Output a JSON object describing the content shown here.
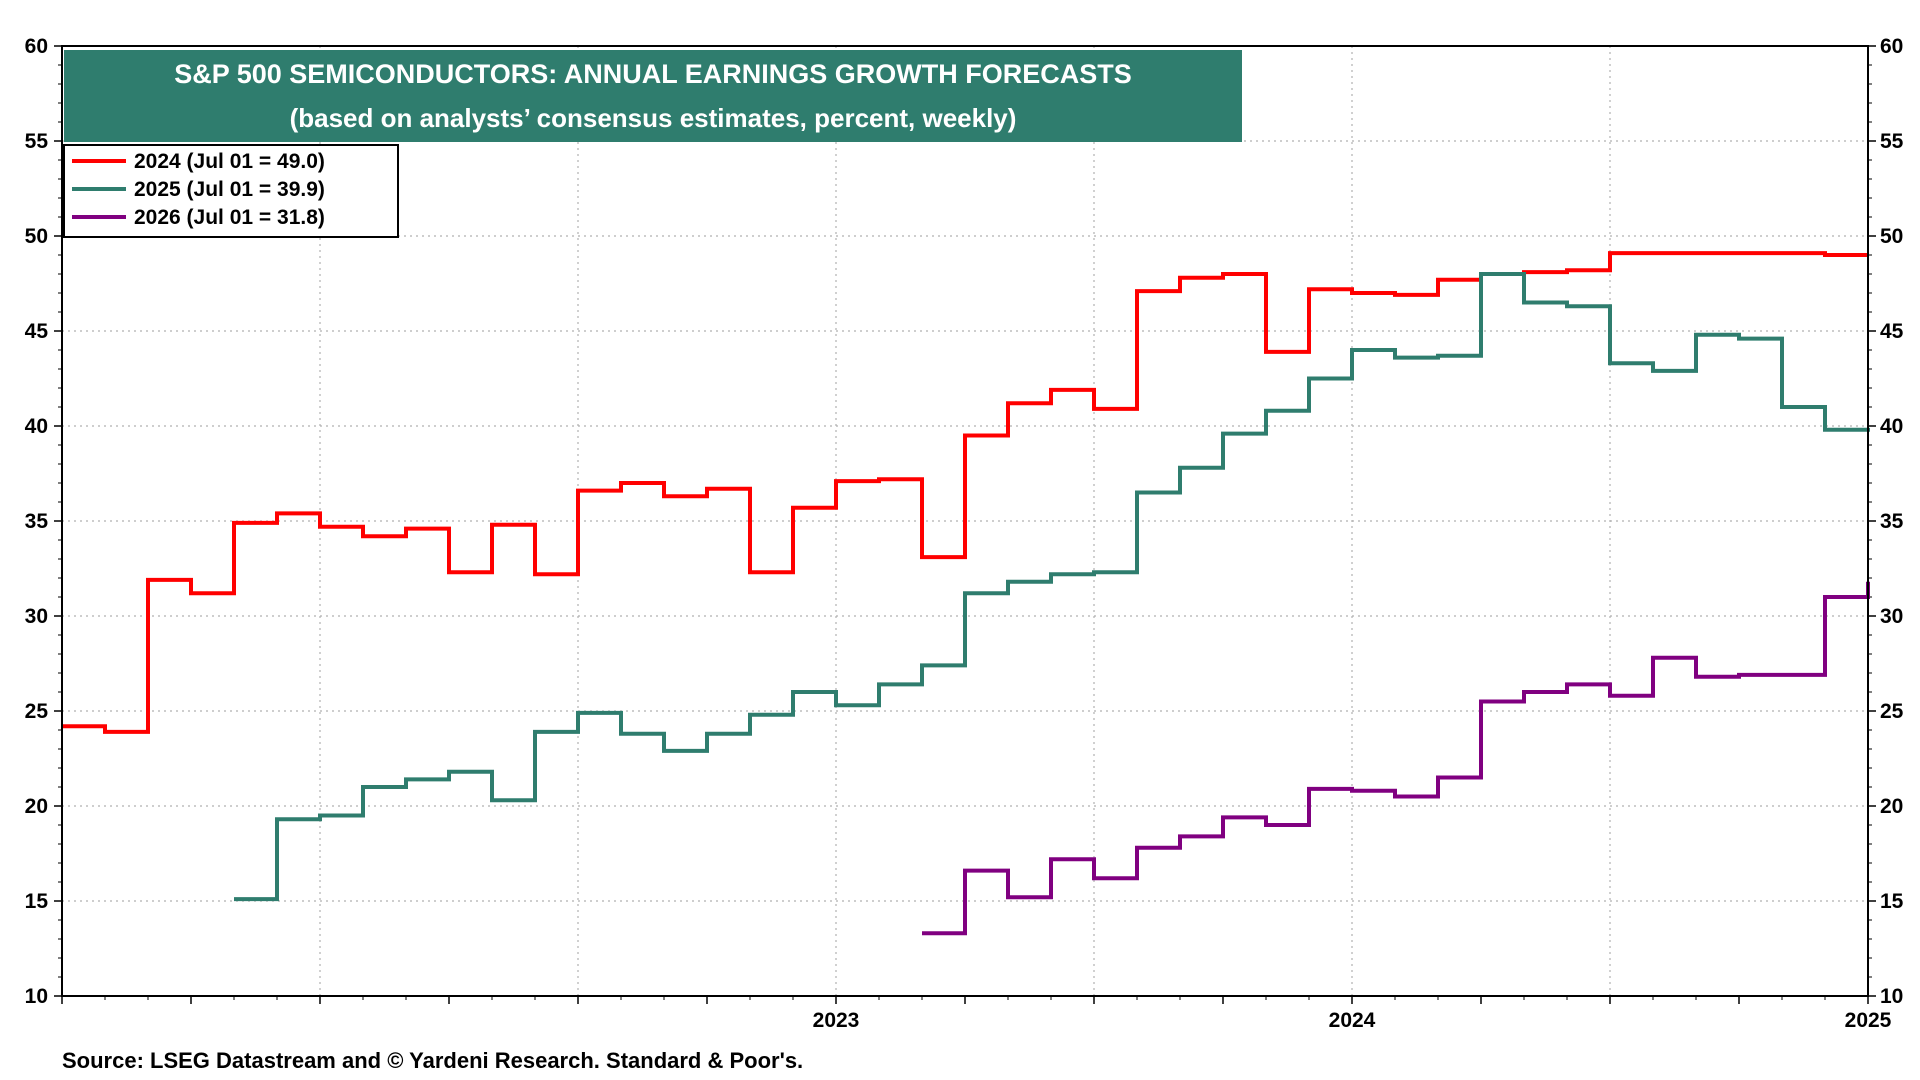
{
  "chart_data": {
    "type": "line",
    "title": "S&P 500 SEMICONDUCTORS: ANNUAL EARNINGS GROWTH FORECASTS",
    "subtitle": "(based on analysts’ consensus estimates, percent, weekly)",
    "source": "Source: LSEG Datastream and © Yardeni Research. Standard & Poor's.",
    "xlabel": "",
    "ylabel": "",
    "x_range": [
      "2022-01",
      "2025-07"
    ],
    "x_tick_labels": [
      "2023",
      "2024",
      "2025"
    ],
    "ylim": [
      10,
      60
    ],
    "y_ticks": [
      10,
      15,
      20,
      25,
      30,
      35,
      40,
      45,
      50,
      55,
      60
    ],
    "y_tick_labels": [
      "10",
      "15",
      "20",
      "25",
      "30",
      "35",
      "40",
      "45",
      "50",
      "55",
      "60"
    ],
    "grid": true,
    "legend_position": "top-left",
    "colors": {
      "title_bg": "#2f7d6e",
      "s2024": "#ff0000",
      "s2025": "#2f7d6e",
      "s2026": "#800080"
    },
    "series": [
      {
        "name": "2024 (Jul 01 = 49.0)",
        "color": "#ff0000",
        "x": [
          "2022-01",
          "2022-02",
          "2022-03",
          "2022-04",
          "2022-05",
          "2022-06",
          "2022-07",
          "2022-08",
          "2022-09",
          "2022-10",
          "2022-11",
          "2022-12",
          "2023-01",
          "2023-02",
          "2023-03",
          "2023-04",
          "2023-05",
          "2023-06",
          "2023-07",
          "2023-08",
          "2023-09",
          "2023-10",
          "2023-11",
          "2023-12",
          "2024-01",
          "2024-02",
          "2024-03",
          "2024-04",
          "2024-05",
          "2024-06",
          "2024-07",
          "2024-08",
          "2024-09",
          "2024-10",
          "2024-11",
          "2024-12",
          "2025-01",
          "2025-02",
          "2025-03",
          "2025-04",
          "2025-05",
          "2025-06",
          "2025-07"
        ],
        "values": [
          24.2,
          23.9,
          31.9,
          31.2,
          34.9,
          35.4,
          34.7,
          34.2,
          34.6,
          32.3,
          34.8,
          32.2,
          36.6,
          37.0,
          36.3,
          36.7,
          32.3,
          35.7,
          37.1,
          37.2,
          33.1,
          39.5,
          41.2,
          41.9,
          40.9,
          47.1,
          47.8,
          48.0,
          43.9,
          47.2,
          47.0,
          46.9,
          47.7,
          48.0,
          48.1,
          48.2,
          49.1,
          49.1,
          49.1,
          49.1,
          49.1,
          49.0,
          49.0
        ]
      },
      {
        "name": "2025 (Jul 01 = 39.9)",
        "color": "#2f7d6e",
        "x": [
          "2022-05",
          "2022-06",
          "2022-07",
          "2022-08",
          "2022-09",
          "2022-10",
          "2022-11",
          "2022-12",
          "2023-01",
          "2023-02",
          "2023-03",
          "2023-04",
          "2023-05",
          "2023-06",
          "2023-07",
          "2023-08",
          "2023-09",
          "2023-10",
          "2023-11",
          "2023-12",
          "2024-01",
          "2024-02",
          "2024-03",
          "2024-04",
          "2024-05",
          "2024-06",
          "2024-07",
          "2024-08",
          "2024-09",
          "2024-10",
          "2024-11",
          "2024-12",
          "2025-01",
          "2025-02",
          "2025-03",
          "2025-04",
          "2025-05",
          "2025-06",
          "2025-07"
        ],
        "values": [
          15.1,
          19.3,
          19.5,
          21.0,
          21.4,
          21.8,
          20.3,
          23.9,
          24.9,
          23.8,
          22.9,
          23.8,
          24.8,
          26.0,
          25.3,
          26.4,
          27.4,
          31.2,
          31.8,
          32.2,
          32.3,
          36.5,
          37.8,
          39.6,
          40.8,
          42.5,
          44.0,
          43.6,
          43.7,
          48.0,
          46.5,
          46.3,
          43.3,
          42.9,
          44.8,
          44.6,
          41.0,
          39.8,
          39.9
        ]
      },
      {
        "name": "2026 (Jul 01 = 31.8)",
        "color": "#800080",
        "x": [
          "2023-09",
          "2023-10",
          "2023-11",
          "2023-12",
          "2024-01",
          "2024-02",
          "2024-03",
          "2024-04",
          "2024-05",
          "2024-06",
          "2024-07",
          "2024-08",
          "2024-09",
          "2024-10",
          "2024-11",
          "2024-12",
          "2025-01",
          "2025-02",
          "2025-03",
          "2025-04",
          "2025-05",
          "2025-06",
          "2025-07"
        ],
        "values": [
          13.3,
          16.6,
          15.2,
          17.2,
          16.2,
          17.8,
          18.4,
          19.4,
          19.0,
          20.9,
          20.8,
          20.5,
          21.5,
          25.5,
          26.0,
          26.4,
          25.8,
          27.8,
          26.8,
          26.9,
          26.9,
          31.0,
          31.8
        ]
      }
    ]
  }
}
